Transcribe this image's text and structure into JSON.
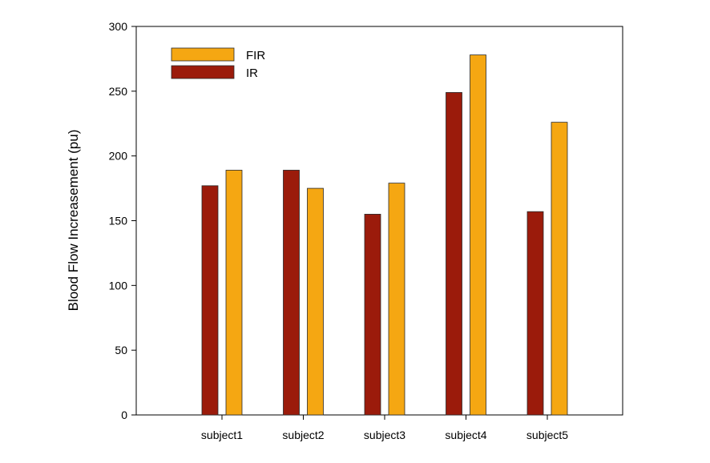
{
  "chart_data": {
    "type": "bar",
    "title": "",
    "xlabel": "",
    "ylabel": "Blood Flow Increasement (pu)",
    "ylim": [
      0,
      300
    ],
    "yticks": [
      0,
      50,
      100,
      150,
      200,
      250,
      300
    ],
    "categories": [
      "subject1",
      "subject2",
      "subject3",
      "subject4",
      "subject5"
    ],
    "series": [
      {
        "name": "IR",
        "color": "#9B1B0B",
        "values": [
          177,
          189,
          155,
          249,
          157
        ]
      },
      {
        "name": "FIR",
        "color": "#F5A712",
        "values": [
          189,
          175,
          179,
          278,
          226
        ]
      }
    ],
    "legend": {
      "position": "top-left",
      "order": [
        "FIR",
        "IR"
      ]
    },
    "grid": false
  }
}
